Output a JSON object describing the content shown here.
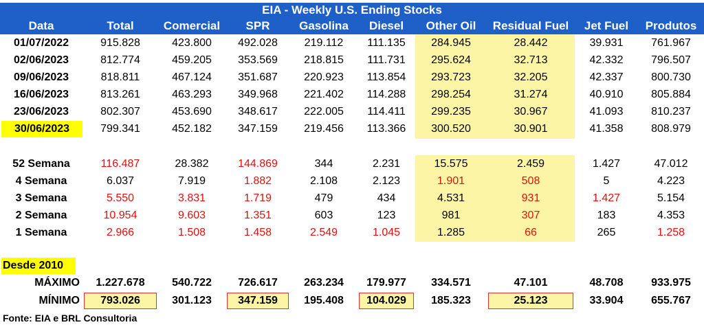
{
  "title": "EIA - Weekly U.S. Ending Stocks",
  "headers": [
    "Data",
    "Total",
    "Comercial",
    "SPR",
    "Gasolina",
    "Diesel",
    "Other Oil",
    "Residual Fuel",
    "Jet Fuel",
    "Produtos"
  ],
  "weekly_rows": [
    {
      "label": "01/07/2022",
      "values": [
        "915.828",
        "423.800",
        "492.028",
        "219.112",
        "111.135",
        "284.945",
        "28.442",
        "39.931",
        "761.967"
      ]
    },
    {
      "label": "02/06/2023",
      "values": [
        "812.774",
        "459.205",
        "353.569",
        "218.815",
        "111.731",
        "295.624",
        "32.713",
        "42.332",
        "796.507"
      ]
    },
    {
      "label": "09/06/2023",
      "values": [
        "818.811",
        "467.124",
        "351.687",
        "220.923",
        "113.854",
        "293.723",
        "32.205",
        "42.337",
        "800.730"
      ]
    },
    {
      "label": "16/06/2023",
      "values": [
        "813.261",
        "463.293",
        "349.968",
        "221.402",
        "114.288",
        "298.254",
        "31.274",
        "40.910",
        "805.884"
      ]
    },
    {
      "label": "23/06/2023",
      "values": [
        "802.307",
        "453.690",
        "348.617",
        "222.005",
        "114.411",
        "299.235",
        "30.967",
        "41.093",
        "810.237"
      ]
    },
    {
      "label": "30/06/2023",
      "values": [
        "799.341",
        "452.182",
        "347.159",
        "219.456",
        "113.366",
        "300.520",
        "30.901",
        "41.358",
        "808.979"
      ],
      "label_highlight": true
    }
  ],
  "change_rows": [
    {
      "label": "52 Semana",
      "values": [
        "116.487",
        "28.382",
        "144.869",
        "344",
        "2.231",
        "15.575",
        "2.459",
        "1.427",
        "47.012"
      ],
      "red": [
        0,
        2
      ]
    },
    {
      "label": "4 Semana",
      "values": [
        "6.037",
        "7.919",
        "1.882",
        "2.108",
        "2.123",
        "1.901",
        "508",
        "5",
        "4.223"
      ],
      "red": [
        2,
        5,
        6
      ]
    },
    {
      "label": "3 Semana",
      "values": [
        "5.550",
        "3.831",
        "1.719",
        "479",
        "434",
        "4.531",
        "931",
        "1.427",
        "5.154"
      ],
      "red": [
        0,
        1,
        2,
        6,
        7
      ]
    },
    {
      "label": "2 Semana",
      "values": [
        "10.954",
        "9.603",
        "1.351",
        "603",
        "123",
        "981",
        "307",
        "183",
        "4.353"
      ],
      "red": [
        0,
        1,
        2,
        6
      ]
    },
    {
      "label": "1 Semana",
      "values": [
        "2.966",
        "1.508",
        "1.458",
        "2.549",
        "1.045",
        "1.285",
        "66",
        "265",
        "1.258"
      ],
      "red": [
        0,
        1,
        2,
        3,
        4,
        6,
        8
      ]
    }
  ],
  "since_label": "Desde 2010",
  "max_row": {
    "label": "MÁXIMO",
    "values": [
      "1.227.678",
      "540.722",
      "726.617",
      "263.234",
      "179.977",
      "334.571",
      "47.101",
      "48.708",
      "933.975"
    ]
  },
  "min_row": {
    "label": "MÍNIMO",
    "values": [
      "793.026",
      "301.123",
      "347.159",
      "195.408",
      "104.029",
      "185.323",
      "25.123",
      "33.904",
      "655.767"
    ],
    "boxed": [
      0,
      2,
      4,
      6
    ]
  },
  "footer": "Fonte: EIA e BRL Consultoria",
  "colors": {
    "header_bg": "#1f5fc8",
    "highlight": "#fdf5a6",
    "label_highlight": "#ffff00",
    "negative": "#e01010",
    "box_border": "#e03030"
  }
}
